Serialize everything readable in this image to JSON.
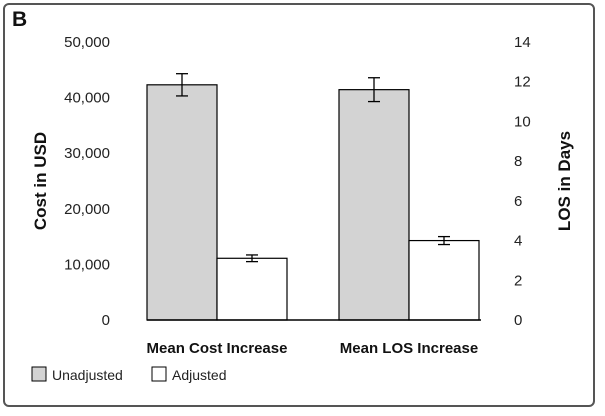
{
  "panel_label": "B",
  "chart_data": {
    "type": "bar",
    "categories": [
      "Mean Cost Increase",
      "Mean LOS Increase"
    ],
    "series": [
      {
        "name": "Unadjusted",
        "values": [
          42300,
          11.6
        ],
        "errors": [
          2000,
          0.6
        ],
        "color": "#d3d3d3"
      },
      {
        "name": "Adjusted",
        "values": [
          11100,
          4.0
        ],
        "errors": [
          600,
          0.2
        ],
        "color": "#ffffff"
      }
    ],
    "axes": {
      "left": {
        "label": "Cost in USD",
        "ylim": [
          0,
          50000
        ],
        "ticks": [
          0,
          10000,
          20000,
          30000,
          40000,
          50000
        ],
        "tick_labels": [
          "0",
          "10,000",
          "20,000",
          "30,000",
          "40,000",
          "50,000"
        ],
        "applies_to": "Mean Cost Increase"
      },
      "right": {
        "label": "LOS in Days",
        "ylim": [
          0,
          14
        ],
        "ticks": [
          0,
          2,
          4,
          6,
          8,
          10,
          12,
          14
        ],
        "tick_labels": [
          "0",
          "2",
          "4",
          "6",
          "8",
          "10",
          "12",
          "14"
        ],
        "applies_to": "Mean LOS Increase"
      }
    },
    "grid": false,
    "legend_position": "bottom-left"
  }
}
